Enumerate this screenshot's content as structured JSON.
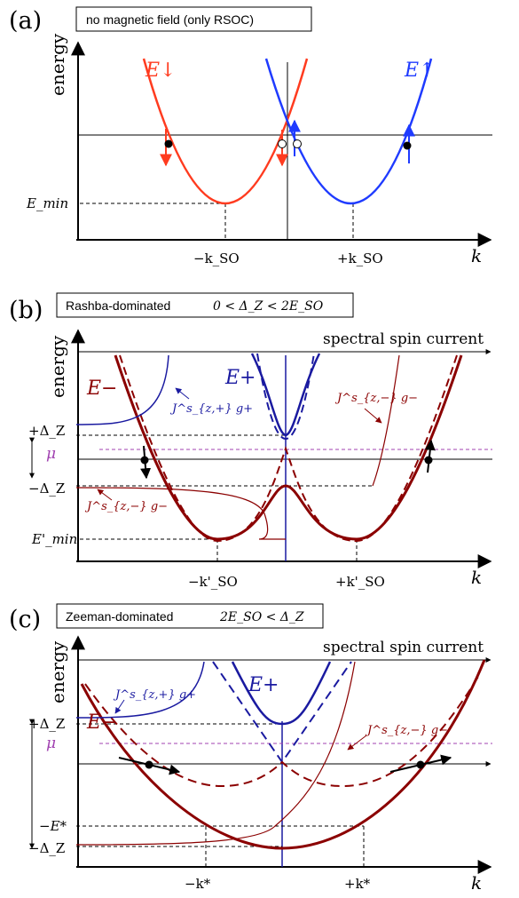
{
  "panel_a": {
    "letter": "(a)",
    "box_text": "no magnetic field (only RSOC)",
    "y_axis_label": "energy",
    "x_axis_label": "k",
    "band_down_label": "E↓",
    "band_up_label": "E↑",
    "emin_label": "E_min",
    "kso_neg_label": "−k_SO",
    "kso_pos_label": "+k_SO",
    "colors": {
      "down": "#ff3b1f",
      "up": "#1f3bff"
    }
  },
  "panel_b": {
    "letter": "(b)",
    "box_text_words": "Rashba-dominated",
    "box_text_math": "0 < Δ_Z < 2E_SO",
    "spectral_label": "spectral spin current",
    "y_axis_label": "energy",
    "x_axis_label": "k",
    "e_minus_label": "E−",
    "e_plus_label": "E+",
    "jplus_label": "J^s_{z,+} g+",
    "jminus_right_label": "J^s_{z,−} g−",
    "jminus_left_label": "J^s_{z,−} g−",
    "plus_dz_label": "+Δ_Z",
    "minus_dz_label": "−Δ_Z",
    "mu_label": "μ",
    "emin_label": "E'_min",
    "kso_neg_label": "−k'_SO",
    "kso_pos_label": "+k'_SO",
    "colors": {
      "minus": "#8b0000",
      "plus": "#1a1aa0",
      "mu": "#a040b0"
    }
  },
  "panel_c": {
    "letter": "(c)",
    "box_text_words": "Zeeman-dominated",
    "box_text_math": "2E_SO < Δ_Z",
    "spectral_label": "spectral spin current",
    "y_axis_label": "energy",
    "x_axis_label": "k",
    "e_minus_label": "E−",
    "e_plus_label": "E+",
    "jplus_label": "J^s_{z,+} g+",
    "jminus_label": "J^s_{z,−} g−",
    "plus_dz_label": "+Δ_Z",
    "minus_dz_label": "−Δ_Z",
    "mu_label": "μ",
    "estar_label": "−E*",
    "kstar_neg_label": "−k*",
    "kstar_pos_label": "+k*",
    "colors": {
      "minus": "#8b0000",
      "plus": "#1a1aa0",
      "mu": "#a040b0"
    }
  }
}
